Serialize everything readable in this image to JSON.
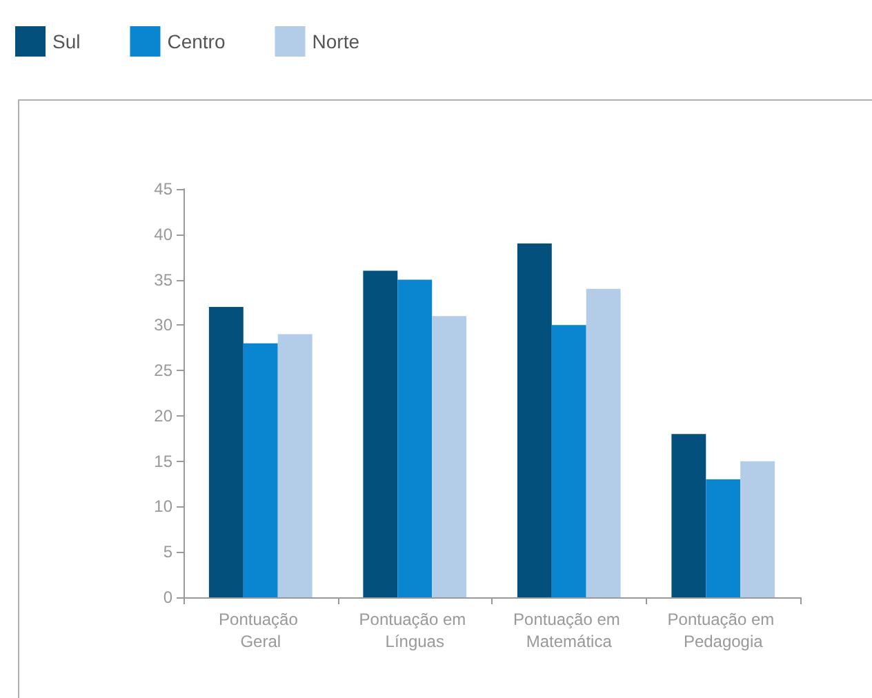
{
  "chart_data": {
    "type": "bar",
    "categories": [
      "Pontuação Geral",
      "Pontuação em Línguas",
      "Pontuação em Matemática",
      "Pontuação em Pedagogia"
    ],
    "series": [
      {
        "name": "Sul",
        "color": "#04507c",
        "values": [
          32,
          36,
          39,
          18
        ]
      },
      {
        "name": "Centro",
        "color": "#0a85d0",
        "values": [
          28,
          35,
          30,
          13
        ]
      },
      {
        "name": "Norte",
        "color": "#b3cde8",
        "values": [
          29,
          31,
          34,
          15
        ]
      }
    ],
    "ylim": [
      0,
      45
    ],
    "yticks": [
      0,
      5,
      10,
      15,
      20,
      25,
      30,
      35,
      40,
      45
    ],
    "grid": false,
    "legend": "top left"
  }
}
